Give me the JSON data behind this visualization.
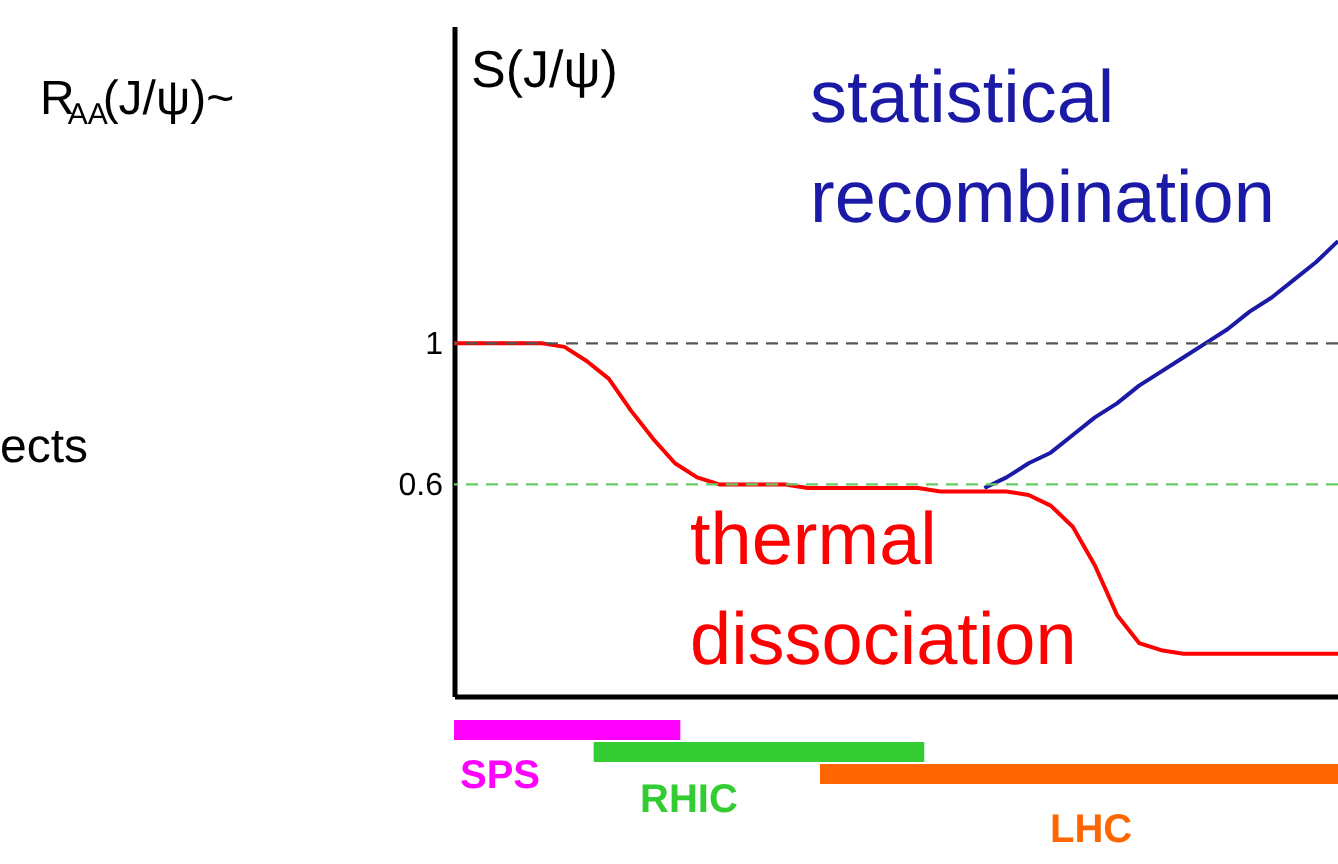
{
  "chart_data": {
    "type": "line",
    "ylabel": "S(J/ψ)",
    "categories": [
      null,
      null,
      null,
      null,
      null,
      null,
      null,
      null,
      null,
      null,
      null,
      null,
      null,
      null,
      null,
      null,
      null,
      null,
      null,
      null,
      null,
      null,
      null,
      null,
      null,
      null,
      null,
      null,
      null,
      null,
      null,
      null,
      null,
      null,
      null,
      null,
      null,
      null,
      null,
      null,
      null
    ],
    "ylim": [
      0,
      1.9
    ],
    "yticks": [
      1,
      0.6
    ],
    "tick_labels": "y",
    "grid": false,
    "series": [
      {
        "name": "statistical recombination",
        "color": "#1a1aa6",
        "values": [
          null,
          null,
          null,
          null,
          null,
          null,
          null,
          null,
          null,
          null,
          null,
          null,
          null,
          null,
          null,
          null,
          null,
          null,
          null,
          null,
          null,
          null,
          null,
          null,
          0.59,
          0.62,
          0.66,
          0.69,
          0.74,
          0.79,
          0.83,
          0.88,
          0.92,
          0.96,
          1.0,
          1.04,
          1.09,
          1.13,
          1.18,
          1.23,
          1.29
        ]
      },
      {
        "name": "thermal dissociation",
        "color": "#ff0000",
        "values": [
          1,
          1,
          1,
          1,
          1,
          0.99,
          0.95,
          0.9,
          0.81,
          0.73,
          0.66,
          0.62,
          0.6,
          0.6,
          0.6,
          0.6,
          0.59,
          0.59,
          0.59,
          0.59,
          0.59,
          0.59,
          0.58,
          0.58,
          0.58,
          0.58,
          0.57,
          0.54,
          0.48,
          0.37,
          0.23,
          0.15,
          0.13,
          0.12,
          0.12,
          0.12,
          0.12,
          0.12,
          0.12,
          0.12,
          0.12
        ]
      }
    ],
    "ref_lines": [
      {
        "axis": "y",
        "value": 1,
        "color": "#555555",
        "line_style": "dashed"
      },
      {
        "axis": "y",
        "value": 0.6,
        "color": "#66cc66",
        "line_style": "dashed"
      }
    ],
    "annotations": [
      "R$_{AA}$(J/ψ)~",
      "ects",
      "SPS",
      "RHIC",
      "LHC"
    ]
  }
}
